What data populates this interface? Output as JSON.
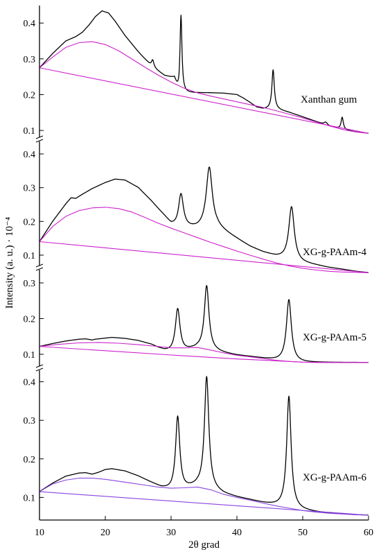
{
  "chart_data": {
    "type": "line",
    "title": "",
    "xlabel": "2θ grad",
    "ylabel": "Intensity (a. u.) · 10⁻⁴",
    "xlim": [
      10,
      60
    ],
    "x_ticks": [
      "10",
      "20",
      "30",
      "40",
      "50",
      "60"
    ],
    "grid": false,
    "colors": {
      "curve": "#000000",
      "background": "#cc22cc",
      "background_alt": "#8844dd"
    },
    "panels": [
      {
        "label": "Xanthan gum",
        "y_ticks": [
          "0.1",
          "0.2",
          "0.3",
          "0.4"
        ],
        "tick_values": [
          0.1,
          0.2,
          0.3,
          0.4
        ],
        "ylim": [
          0.077,
          0.445
        ],
        "background_color": "#cc22cc",
        "peaks": [
          {
            "pos": 27.2,
            "height": 0.02,
            "width": 0.22
          },
          {
            "pos": 31.5,
            "height": 0.22,
            "width": 0.18
          },
          {
            "pos": 45.5,
            "height": 0.11,
            "width": 0.22
          },
          {
            "pos": 53.5,
            "height": 0.008,
            "width": 0.3
          },
          {
            "pos": 56.0,
            "height": 0.034,
            "width": 0.2
          }
        ],
        "series": [
          {
            "name": "",
            "role": "curve",
            "x": [
              10,
              12,
              14,
              15.5,
              16.5,
              17.5,
              18.5,
              19.5,
              20.5,
              21.5,
              23,
              25,
              27,
              29,
              30.5,
              31.2,
              32,
              33,
              36,
              38,
              40,
              41,
              42,
              43,
              44,
              45,
              46,
              48,
              50,
              52,
              54,
              56,
              58,
              60
            ],
            "y": [
              0.275,
              0.315,
              0.35,
              0.362,
              0.374,
              0.394,
              0.418,
              0.434,
              0.428,
              0.405,
              0.365,
              0.32,
              0.28,
              0.253,
              0.245,
              0.2,
              0.205,
              0.205,
              0.205,
              0.204,
              0.2,
              0.19,
              0.178,
              0.165,
              0.16,
              0.16,
              0.159,
              0.15,
              0.138,
              0.125,
              0.112,
              0.103,
              0.096,
              0.092
            ]
          },
          {
            "name": "",
            "role": "amorphous",
            "x": [
              10,
              12,
              14,
              16,
              18,
              20,
              22,
              24,
              26,
              28,
              30,
              32,
              34,
              36,
              38,
              40,
              42,
              44,
              46,
              48,
              50,
              52,
              54,
              56,
              58,
              60
            ],
            "y": [
              0.275,
              0.305,
              0.332,
              0.345,
              0.348,
              0.34,
              0.323,
              0.3,
              0.277,
              0.255,
              0.235,
              0.218,
              0.205,
              0.196,
              0.188,
              0.18,
              0.172,
              0.164,
              0.155,
              0.145,
              0.135,
              0.124,
              0.113,
              0.103,
              0.096,
              0.092
            ]
          },
          {
            "name": "",
            "role": "baseline",
            "x": [
              10,
              60
            ],
            "y": [
              0.275,
              0.092
            ]
          }
        ]
      },
      {
        "label": "XG-g-PAAm-4",
        "y_ticks": [
          "0.1",
          "0.2",
          "0.3",
          "0.4"
        ],
        "tick_values": [
          0.1,
          0.2,
          0.3,
          0.4
        ],
        "ylim": [
          0.065,
          0.435
        ],
        "background_color": "#cc22cc",
        "peaks": [
          {
            "pos": 31.5,
            "height": 0.1,
            "width": 0.45
          },
          {
            "pos": 35.8,
            "height": 0.18,
            "width": 0.55
          },
          {
            "pos": 48.3,
            "height": 0.16,
            "width": 0.5
          }
        ],
        "series": [
          {
            "name": "",
            "role": "curve",
            "x": [
              10,
              12,
              14,
              14.8,
              15.5,
              16.5,
              18,
              20,
              21.5,
              23,
              25,
              27,
              29,
              30,
              31,
              32,
              33,
              34,
              35,
              37,
              38,
              40,
              42,
              44,
              46,
              47,
              48,
              49,
              50,
              52,
              54,
              56,
              58,
              60
            ],
            "y": [
              0.14,
              0.2,
              0.252,
              0.27,
              0.268,
              0.28,
              0.297,
              0.315,
              0.325,
              0.322,
              0.3,
              0.26,
              0.215,
              0.19,
              0.18,
              0.18,
              0.179,
              0.178,
              0.18,
              0.18,
              0.17,
              0.148,
              0.125,
              0.108,
              0.095,
              0.09,
              0.085,
              0.08,
              0.076,
              0.07,
              0.063,
              0.058,
              0.052,
              0.048
            ]
          },
          {
            "name": "",
            "role": "amorphous",
            "x": [
              10,
              12,
              14,
              16,
              18,
              20,
              22,
              24,
              26,
              28,
              30,
              32,
              34,
              36,
              38,
              40,
              42,
              44,
              46,
              48,
              50,
              52,
              54,
              56,
              58,
              60
            ],
            "y": [
              0.14,
              0.185,
              0.215,
              0.232,
              0.24,
              0.242,
              0.238,
              0.228,
              0.212,
              0.195,
              0.18,
              0.166,
              0.152,
              0.138,
              0.125,
              0.112,
              0.1,
              0.088,
              0.077,
              0.068,
              0.061,
              0.056,
              0.052,
              0.05,
              0.049,
              0.048
            ]
          },
          {
            "name": "",
            "role": "baseline",
            "x": [
              10,
              60
            ],
            "y": [
              0.14,
              0.048
            ]
          }
        ]
      },
      {
        "label": "XG-g-PAAm-5",
        "y_ticks": [
          "0.1",
          "0.2",
          "0.3"
        ],
        "tick_values": [
          0.1,
          0.2,
          0.3
        ],
        "ylim": [
          0.063,
          0.335
        ],
        "background_color": "#cc22cc",
        "peaks": [
          {
            "pos": 31.0,
            "height": 0.12,
            "width": 0.42
          },
          {
            "pos": 35.4,
            "height": 0.18,
            "width": 0.42
          },
          {
            "pos": 47.9,
            "height": 0.175,
            "width": 0.45
          }
        ],
        "series": [
          {
            "name": "",
            "role": "curve",
            "x": [
              10,
              12,
              14,
              16,
              17,
              18,
              18.5,
              19,
              21,
              23,
              25,
              27,
              28,
              29,
              30,
              32,
              33,
              34,
              36,
              38,
              40,
              42,
              44,
              46,
              48,
              50,
              52,
              54,
              56,
              58,
              60
            ],
            "y": [
              0.122,
              0.13,
              0.137,
              0.142,
              0.143,
              0.14,
              0.142,
              0.143,
              0.147,
              0.144,
              0.138,
              0.127,
              0.118,
              0.11,
              0.106,
              0.108,
              0.112,
              0.115,
              0.11,
              0.103,
              0.097,
              0.093,
              0.088,
              0.083,
              0.078,
              0.077,
              0.077,
              0.077,
              0.077,
              0.077,
              0.077
            ]
          },
          {
            "name": "",
            "role": "amorphous",
            "x": [
              10,
              13,
              16,
              19,
              22,
              25,
              28,
              30,
              32,
              34,
              36,
              38,
              40,
              42,
              44,
              46,
              48,
              50,
              52,
              54,
              56,
              58,
              60
            ],
            "y": [
              0.122,
              0.128,
              0.132,
              0.133,
              0.131,
              0.127,
              0.122,
              0.118,
              0.118,
              0.119,
              0.112,
              0.104,
              0.097,
              0.093,
              0.088,
              0.083,
              0.08,
              0.078,
              0.077,
              0.077,
              0.077,
              0.077,
              0.077
            ]
          },
          {
            "name": "",
            "role": "baseline",
            "x": [
              10,
              20,
              30,
              40,
              50,
              55,
              60
            ],
            "y": [
              0.122,
              0.11,
              0.098,
              0.087,
              0.078,
              0.077,
              0.077
            ]
          }
        ]
      },
      {
        "label": "XG-g-PAAm-6",
        "y_ticks": [
          "0.1",
          "0.2",
          "0.3",
          "0.4"
        ],
        "tick_values": [
          0.1,
          0.2,
          0.3,
          0.4
        ],
        "ylim": [
          0.045,
          0.428
        ],
        "background_color": "#8844dd",
        "peaks": [
          {
            "pos": 31.0,
            "height": 0.19,
            "width": 0.38
          },
          {
            "pos": 35.4,
            "height": 0.29,
            "width": 0.4
          },
          {
            "pos": 47.9,
            "height": 0.29,
            "width": 0.4
          }
        ],
        "series": [
          {
            "name": "",
            "role": "curve",
            "x": [
              10,
              12,
              14,
              16,
              17,
              18,
              19,
              20,
              21,
              23,
              25,
              27,
              28.5,
              29.5,
              30,
              32,
              33,
              34,
              36,
              38,
              40,
              42,
              44,
              46,
              48,
              50,
              52,
              54,
              56,
              58,
              60
            ],
            "y": [
              0.115,
              0.137,
              0.155,
              0.163,
              0.164,
              0.16,
              0.165,
              0.172,
              0.174,
              0.168,
              0.155,
              0.138,
              0.125,
              0.12,
              0.118,
              0.12,
              0.124,
              0.127,
              0.12,
              0.108,
              0.1,
              0.093,
              0.085,
              0.078,
              0.072,
              0.066,
              0.062,
              0.059,
              0.057,
              0.055,
              0.054
            ]
          },
          {
            "name": "",
            "role": "amorphous",
            "x": [
              10,
              12,
              14,
              16,
              18,
              20,
              22,
              24,
              26,
              28,
              30,
              32,
              34,
              36,
              38,
              40,
              42,
              44,
              46,
              48,
              50,
              52,
              54,
              56,
              58,
              60
            ],
            "y": [
              0.115,
              0.135,
              0.145,
              0.15,
              0.15,
              0.147,
              0.142,
              0.137,
              0.132,
              0.127,
              0.124,
              0.125,
              0.127,
              0.12,
              0.108,
              0.1,
              0.093,
              0.085,
              0.078,
              0.072,
              0.066,
              0.062,
              0.059,
              0.057,
              0.055,
              0.054
            ]
          },
          {
            "name": "",
            "role": "baseline",
            "x": [
              10,
              60
            ],
            "y": [
              0.115,
              0.054
            ]
          }
        ]
      }
    ]
  }
}
